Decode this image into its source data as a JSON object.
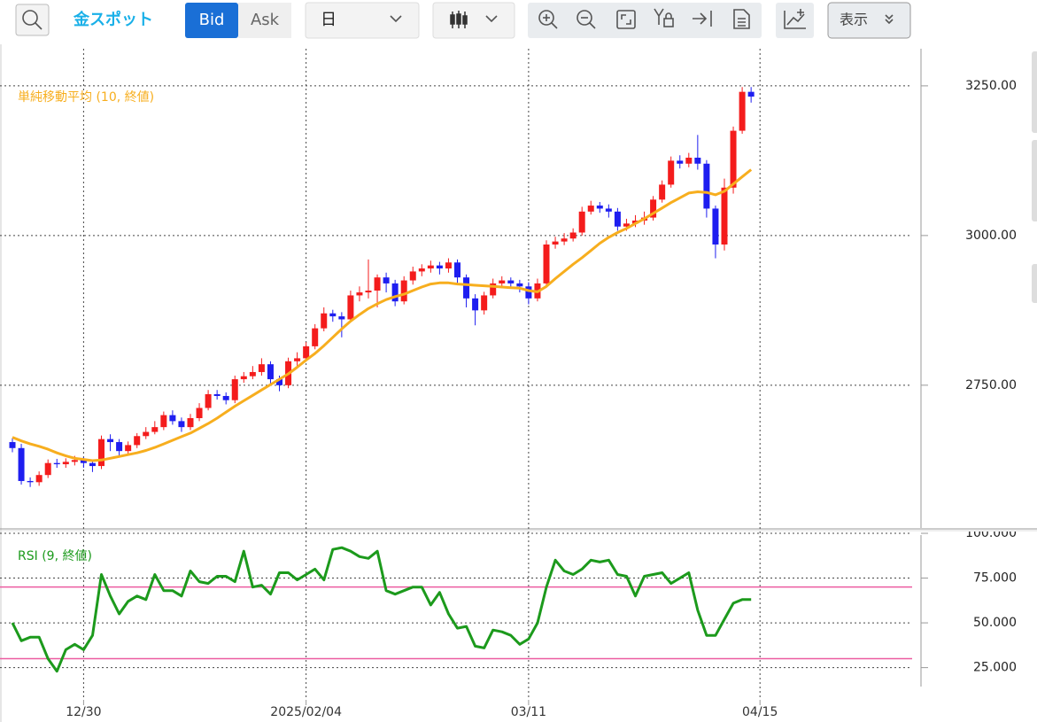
{
  "toolbar": {
    "symbol": "金スポット",
    "bid": "Bid",
    "ask": "Ask",
    "period": "日",
    "display": "表示"
  },
  "chart_data": [
    {
      "type": "candlestick",
      "categories": [
        null,
        null,
        null,
        null,
        null,
        null,
        null,
        null,
        "12/30",
        null,
        null,
        null,
        null,
        null,
        null,
        null,
        null,
        null,
        null,
        null,
        null,
        null,
        null,
        null,
        null,
        null,
        null,
        null,
        null,
        null,
        null,
        null,
        null,
        "2025/02/04",
        null,
        null,
        null,
        null,
        null,
        null,
        null,
        null,
        null,
        null,
        null,
        null,
        null,
        null,
        null,
        null,
        null,
        null,
        null,
        null,
        null,
        null,
        null,
        null,
        "03/11",
        null,
        null,
        null,
        null,
        null,
        null,
        null,
        null,
        null,
        null,
        null,
        null,
        null,
        null,
        null,
        null,
        null,
        null,
        null,
        null,
        null,
        null,
        null,
        null,
        null,
        "04/15"
      ],
      "open": [
        2655,
        2645,
        2590,
        2588,
        2600,
        2620,
        2618,
        2622,
        2625,
        2620,
        2615,
        2660,
        2655,
        2640,
        2650,
        2665,
        2672,
        2680,
        2700,
        2690,
        2680,
        2695,
        2712,
        2735,
        2732,
        2725,
        2760,
        2765,
        2772,
        2785,
        2760,
        2750,
        2790,
        2795,
        2815,
        2845,
        2870,
        2865,
        2860,
        2900,
        2905,
        2908,
        2930,
        2920,
        2890,
        2925,
        2940,
        2945,
        2950,
        2945,
        2955,
        2930,
        2895,
        2875,
        2900,
        2920,
        2925,
        2920,
        2915,
        2895,
        2920,
        2985,
        2990,
        2995,
        3005,
        3040,
        3050,
        3045,
        3040,
        3015,
        3020,
        3025,
        3030,
        3060,
        3085,
        3125,
        3120,
        3130,
        3120,
        3045,
        2985,
        3080,
        3175,
        3240,
        null
      ],
      "high": [
        2662,
        2652,
        2596,
        2606,
        2626,
        2627,
        2628,
        2632,
        2630,
        2626,
        2666,
        2668,
        2660,
        2656,
        2670,
        2680,
        2690,
        2706,
        2708,
        2696,
        2702,
        2720,
        2742,
        2742,
        2738,
        2766,
        2772,
        2782,
        2795,
        2790,
        2766,
        2796,
        2805,
        2822,
        2852,
        2880,
        2876,
        2872,
        2908,
        2915,
        2960,
        2935,
        2938,
        2926,
        2932,
        2948,
        2952,
        2958,
        2956,
        2962,
        2960,
        2935,
        2902,
        2906,
        2928,
        2932,
        2930,
        2926,
        2922,
        2928,
        2992,
        2998,
        3004,
        3012,
        3048,
        3058,
        3056,
        3052,
        3046,
        3028,
        3034,
        3040,
        3066,
        3092,
        3132,
        3134,
        3138,
        3168,
        3126,
        3050,
        3095,
        3182,
        3248,
        3248,
        null
      ],
      "low": [
        2638,
        2584,
        2580,
        2582,
        2595,
        2612,
        2612,
        2616,
        2612,
        2605,
        2610,
        2640,
        2630,
        2635,
        2645,
        2660,
        2668,
        2675,
        2684,
        2672,
        2675,
        2690,
        2708,
        2726,
        2718,
        2720,
        2754,
        2760,
        2766,
        2752,
        2740,
        2745,
        2782,
        2790,
        2810,
        2840,
        2856,
        2830,
        2855,
        2890,
        2895,
        2880,
        2905,
        2882,
        2885,
        2918,
        2932,
        2938,
        2935,
        2938,
        2920,
        2880,
        2850,
        2868,
        2895,
        2912,
        2912,
        2905,
        2885,
        2890,
        2915,
        2978,
        2984,
        2990,
        3000,
        3035,
        3038,
        3030,
        3008,
        3008,
        3014,
        3018,
        3025,
        3055,
        3080,
        3112,
        3114,
        3110,
        3030,
        2962,
        2975,
        3070,
        3170,
        3222,
        null
      ],
      "close": [
        2645,
        2590,
        2588,
        2600,
        2620,
        2618,
        2622,
        2625,
        2620,
        2615,
        2660,
        2655,
        2640,
        2650,
        2665,
        2672,
        2680,
        2700,
        2690,
        2680,
        2695,
        2712,
        2735,
        2732,
        2725,
        2760,
        2765,
        2772,
        2785,
        2760,
        2750,
        2790,
        2795,
        2815,
        2845,
        2870,
        2865,
        2860,
        2900,
        2905,
        2908,
        2930,
        2920,
        2890,
        2925,
        2940,
        2945,
        2950,
        2945,
        2955,
        2930,
        2895,
        2875,
        2900,
        2920,
        2925,
        2920,
        2915,
        2895,
        2920,
        2985,
        2990,
        2995,
        3005,
        3040,
        3050,
        3045,
        3040,
        3015,
        3020,
        3025,
        3030,
        3060,
        3085,
        3125,
        3120,
        3130,
        3120,
        3045,
        2985,
        3080,
        3175,
        3240,
        3232,
        null
      ],
      "up_color": "#f41c1c",
      "down_color": "#1e1ef0",
      "series": [
        {
          "name": "単純移動平均 (10, 終値)",
          "color": "#f7ae1e",
          "values": [
            2663,
            2657,
            2652,
            2648,
            2643,
            2637,
            2632,
            2628,
            2626,
            2624,
            2625,
            2628,
            2631,
            2634,
            2637,
            2641,
            2646,
            2652,
            2658,
            2664,
            2670,
            2678,
            2686,
            2695,
            2705,
            2715,
            2724,
            2733,
            2742,
            2751,
            2760,
            2769,
            2780,
            2792,
            2803,
            2816,
            2830,
            2844,
            2857,
            2868,
            2878,
            2886,
            2893,
            2898,
            2902,
            2908,
            2914,
            2919,
            2921,
            2921,
            2919,
            2918,
            2917,
            2916,
            2915,
            2914,
            2913,
            2912,
            2908,
            2906,
            2915,
            2928,
            2940,
            2952,
            2963,
            2975,
            2987,
            2997,
            3005,
            3012,
            3020,
            3028,
            3037,
            3046,
            3055,
            3063,
            3071,
            3073,
            3072,
            3068,
            3074,
            3086,
            3098,
            3110,
            null
          ]
        }
      ],
      "ylim": [
        2513,
        3312
      ],
      "yticks": [
        {
          "value": 2750,
          "label": "2750.00"
        },
        {
          "value": 3000,
          "label": "3000.00"
        },
        {
          "value": 3250,
          "label": "3250.00"
        }
      ],
      "grid": true
    },
    {
      "type": "line",
      "series": [
        {
          "name": "RSI (9, 終値)",
          "color": "#1c9a1c",
          "values": [
            50,
            40,
            42,
            42,
            30,
            23,
            35,
            38,
            35,
            43,
            77,
            65,
            55,
            62,
            65,
            63,
            77,
            68,
            68,
            65,
            79,
            73,
            72,
            76,
            76,
            73,
            90,
            70,
            71,
            66,
            78,
            78,
            74,
            77,
            80,
            74,
            91,
            92,
            90,
            87,
            86,
            90,
            68,
            66,
            68,
            70,
            70,
            60,
            67,
            55,
            47,
            48,
            37,
            36,
            46,
            45,
            43,
            38,
            41,
            50,
            70,
            85,
            79,
            77,
            80,
            85,
            84,
            85,
            77,
            76,
            65,
            76,
            77,
            78,
            72,
            75,
            78,
            57,
            43,
            43,
            52,
            61,
            63,
            63,
            null
          ]
        }
      ],
      "levels": [
        30,
        70
      ],
      "level_color": "#ec5ca0",
      "ylim": [
        7,
        101
      ],
      "yticks": [
        {
          "value": 25,
          "label": "25.000"
        },
        {
          "value": 50,
          "label": "50.000"
        },
        {
          "value": 75,
          "label": "75.000"
        },
        {
          "value": 100,
          "label": "100.000"
        }
      ],
      "grid": true
    }
  ]
}
